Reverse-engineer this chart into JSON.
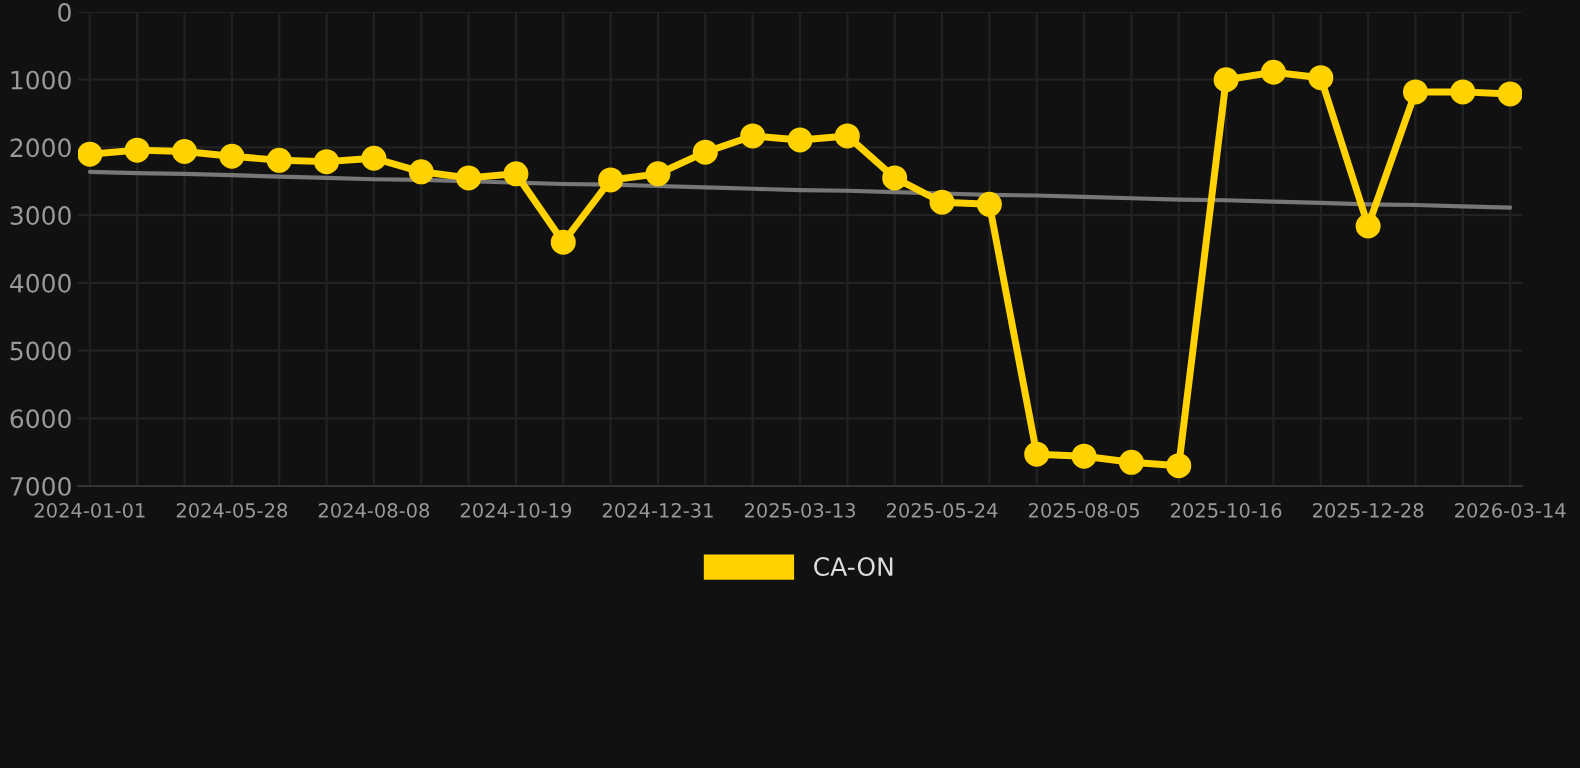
{
  "chart_data": {
    "type": "line",
    "categories": [
      "2024-01-01",
      null,
      null,
      "2024-05-28",
      null,
      null,
      "2024-08-08",
      null,
      null,
      "2024-10-19",
      null,
      null,
      "2024-12-31",
      null,
      null,
      "2025-03-13",
      null,
      null,
      "2025-05-24",
      null,
      null,
      "2025-08-05",
      null,
      null,
      "2025-10-16",
      null,
      null,
      "2025-12-28",
      null,
      null,
      "2026-03-14"
    ],
    "series": [
      {
        "name": "CA-ON",
        "color": "#ffd200",
        "marker": "circle",
        "values": [
          2100,
          2040,
          2060,
          2130,
          2190,
          2210,
          2160,
          2360,
          2450,
          2390,
          3400,
          2480,
          2390,
          2070,
          1830,
          1890,
          1830,
          2450,
          2810,
          2840,
          6530,
          6560,
          6650,
          6700,
          1000,
          890,
          970,
          3160,
          1180,
          1180,
          1210
        ]
      },
      {
        "type": "line",
        "color": "#777777",
        "marker": "none",
        "values": [
          2360,
          2380,
          2390,
          2410,
          2430,
          2450,
          2470,
          2480,
          2500,
          2520,
          2540,
          2550,
          2570,
          2590,
          2610,
          2630,
          2640,
          2660,
          2680,
          2700,
          2710,
          2730,
          2750,
          2770,
          2780,
          2800,
          2820,
          2840,
          2850,
          2870,
          2890
        ]
      }
    ],
    "ylim": [
      7000,
      0
    ],
    "yticks": [
      0,
      1000,
      2000,
      3000,
      4000,
      5000,
      6000,
      7000
    ],
    "grid": true,
    "legend": "bottom"
  }
}
